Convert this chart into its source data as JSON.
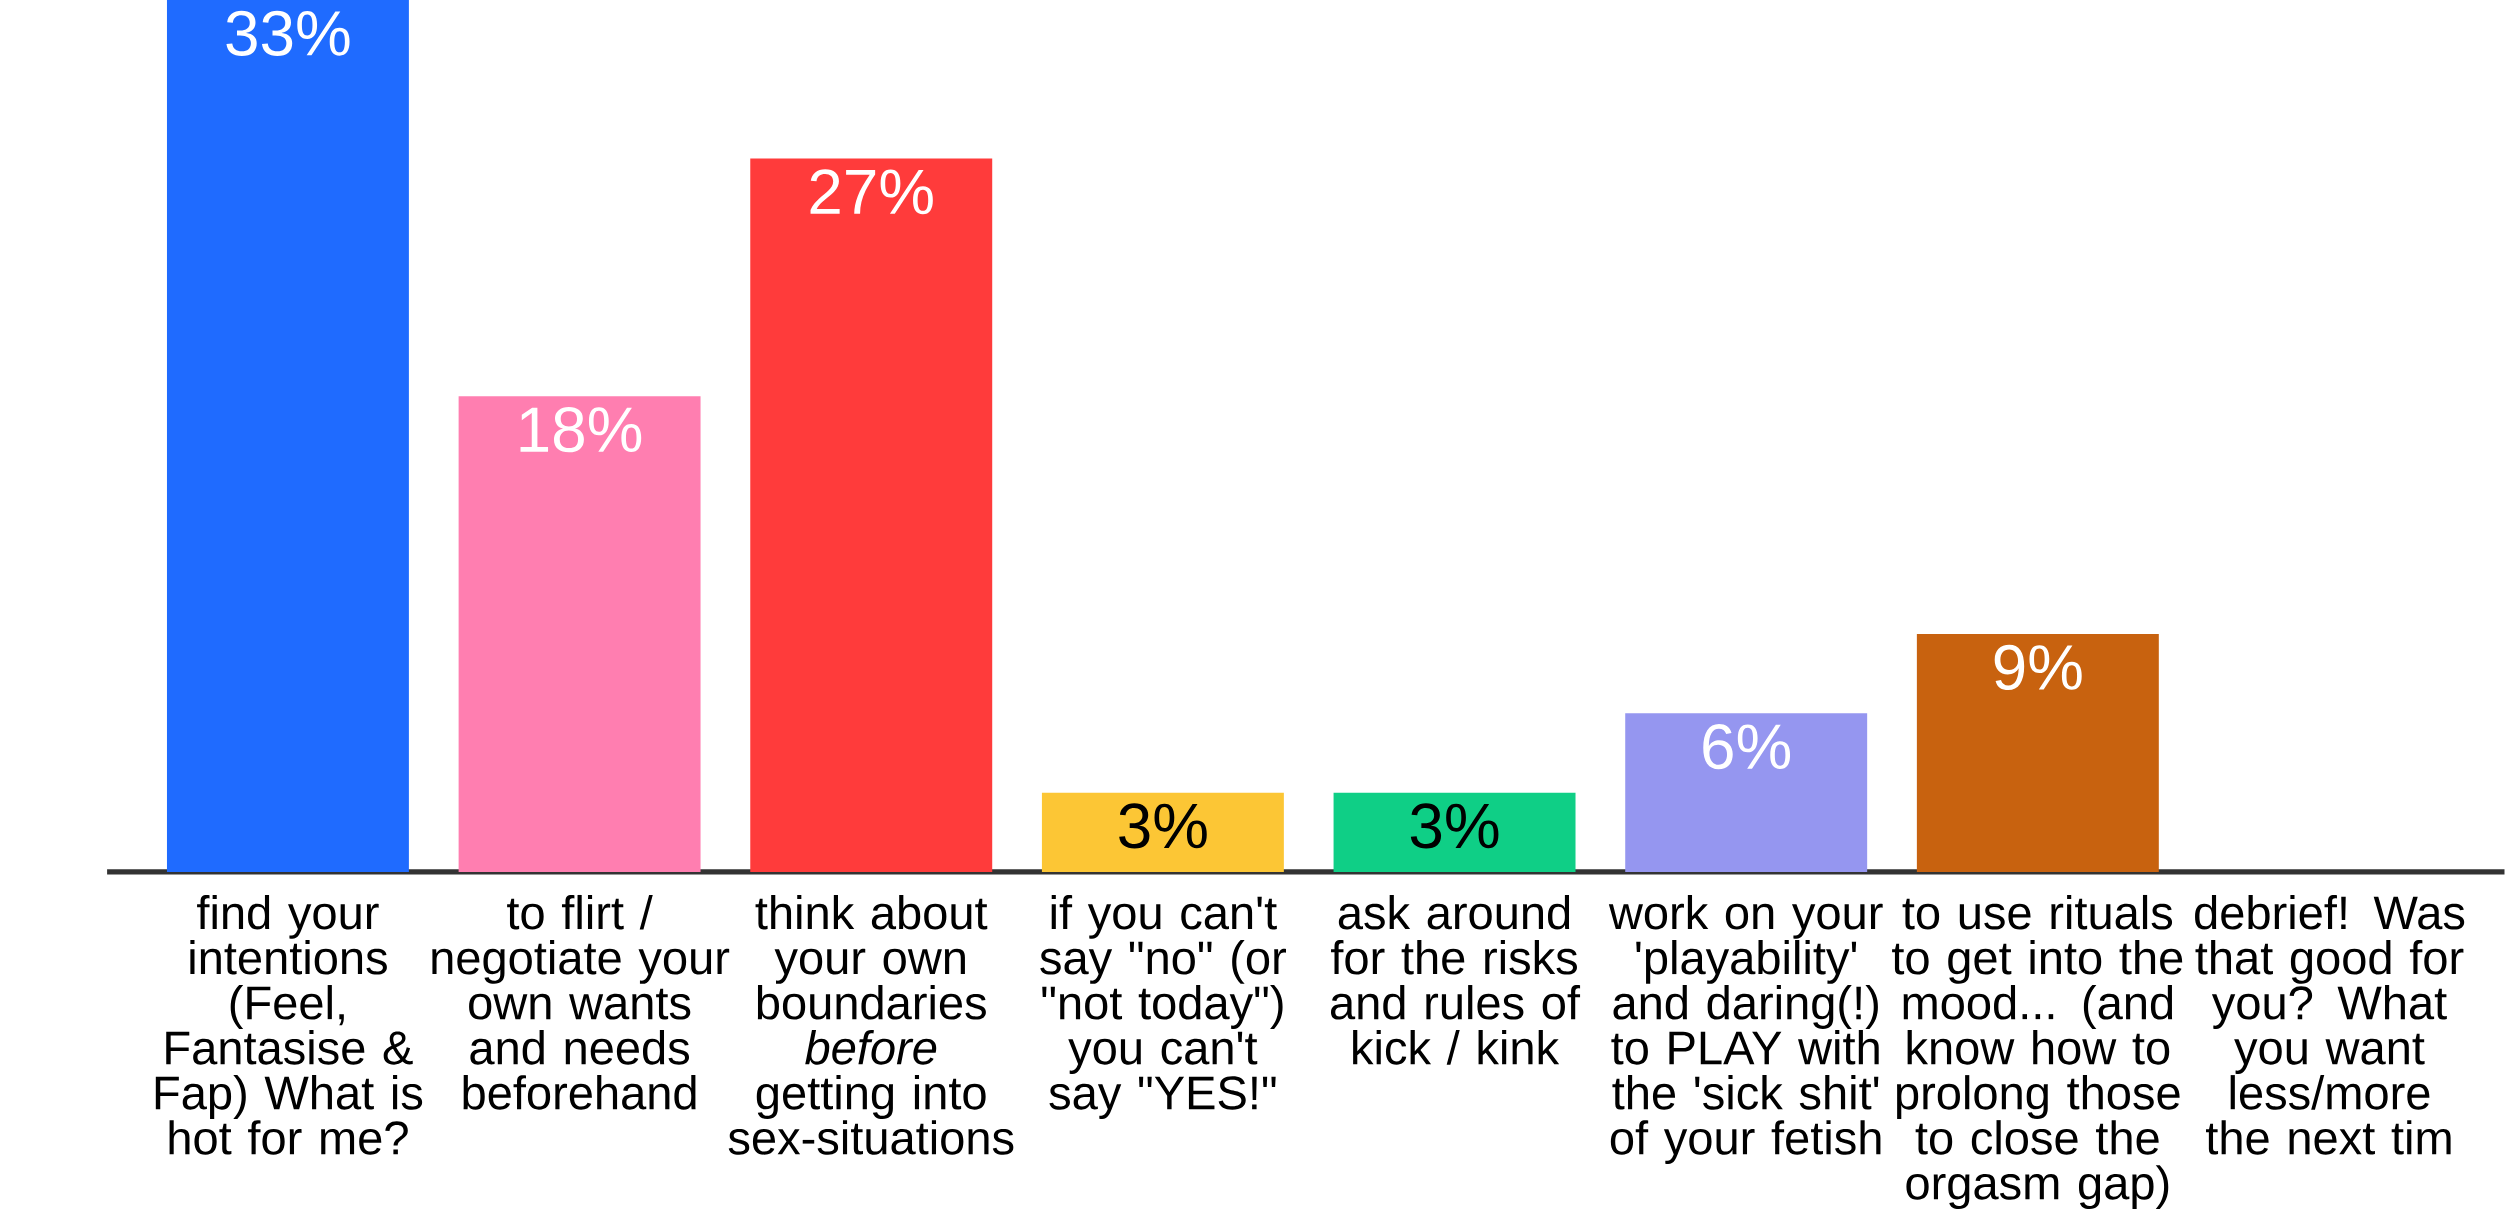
{
  "chart_data": {
    "type": "bar",
    "categories": [
      "find your intentions (Feel, Fantasise & Fap) What is hot for me?",
      "to flirt / negotiate your own wants and needs beforehand",
      "think about your own boundaries *before* getting into sex-situations",
      "if you can't say \"no\" (or \"not today\") you can't say \"YES!\"",
      "ask around for the risks and rules of kick / kink",
      "work on your 'playability' and daring(!) to PLAY with the 'sick shit' of your fetish",
      "to use rituals to get into the mood... (and know how to prolong those to close the orgasm gap)",
      "debrief! Was that good for you? What you want less/more the next tim"
    ],
    "values": [
      33,
      18,
      27,
      3,
      3,
      6,
      9,
      0
    ],
    "value_labels": [
      "33%",
      "18%",
      "27%",
      "3%",
      "3%",
      "6%",
      "9%",
      null
    ],
    "colors": [
      "#1f6bff",
      "#ff7eb0",
      "#ff3b3b",
      "#fcc635",
      "#0fcf86",
      "#9596f0",
      "#c8620f",
      "#4ade80"
    ]
  }
}
